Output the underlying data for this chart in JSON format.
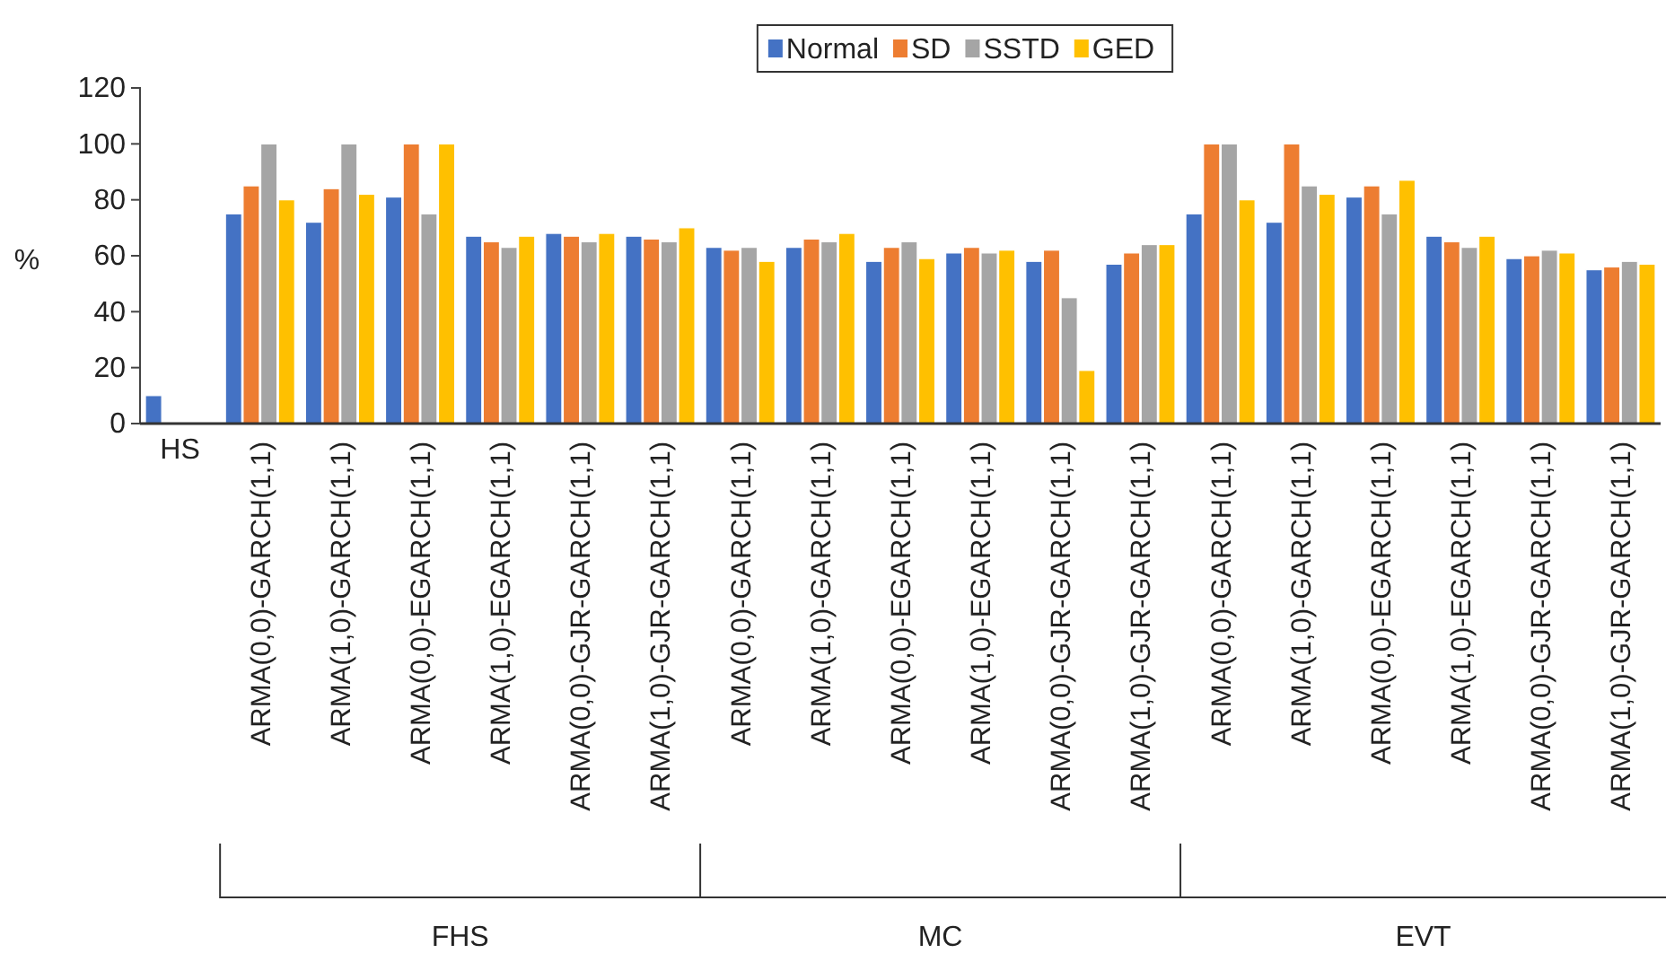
{
  "chart_data": {
    "type": "bar",
    "ylabel": "%",
    "categories": [
      "HS",
      "ARMA(0,0)-GARCH(1,1)",
      "ARMA(1,0)-GARCH(1,1)",
      "ARMA(0,0)-EGARCH(1,1)",
      "ARMA(1,0)-EGARCH(1,1)",
      "ARMA(0,0)-GJR-GARCH(1,1)",
      "ARMA(1,0)-GJR-GARCH(1,1)",
      "ARMA(0,0)-GARCH(1,1)",
      "ARMA(1,0)-GARCH(1,1)",
      "ARMA(0,0)-EGARCH(1,1)",
      "ARMA(1,0)-EGARCH(1,1)",
      "ARMA(0,0)-GJR-GARCH(1,1)",
      "ARMA(1,0)-GJR-GARCH(1,1)",
      "ARMA(0,0)-GARCH(1,1)",
      "ARMA(1,0)-GARCH(1,1)",
      "ARMA(0,0)-EGARCH(1,1)",
      "ARMA(1,0)-EGARCH(1,1)",
      "ARMA(0,0)-GJR-GARCH(1,1)",
      "ARMA(1,0)-GJR-GARCH(1,1)"
    ],
    "series": [
      {
        "name": "Normal",
        "color": "#4472c4",
        "values": [
          10,
          75,
          72,
          81,
          67,
          68,
          67,
          63,
          63,
          58,
          61,
          58,
          57,
          75,
          72,
          81,
          67,
          59,
          55
        ]
      },
      {
        "name": "SD",
        "color": "#ed7d31",
        "values": [
          null,
          85,
          84,
          100,
          65,
          67,
          66,
          62,
          66,
          63,
          63,
          62,
          61,
          100,
          100,
          85,
          65,
          60,
          56
        ]
      },
      {
        "name": "SSTD",
        "color": "#a5a5a5",
        "values": [
          null,
          100,
          100,
          75,
          63,
          65,
          65,
          63,
          65,
          65,
          61,
          45,
          64,
          100,
          85,
          75,
          63,
          62,
          58
        ]
      },
      {
        "name": "GED",
        "color": "#ffc000",
        "values": [
          null,
          80,
          82,
          100,
          67,
          68,
          70,
          58,
          68,
          59,
          62,
          19,
          64,
          80,
          82,
          87,
          67,
          61,
          57
        ]
      }
    ],
    "ylim": [
      0,
      120
    ],
    "yticks": [
      0,
      20,
      40,
      60,
      80,
      100,
      120
    ],
    "grid": false,
    "legend": "top",
    "annotations": [
      "FHS",
      "MC",
      "EVT"
    ]
  }
}
